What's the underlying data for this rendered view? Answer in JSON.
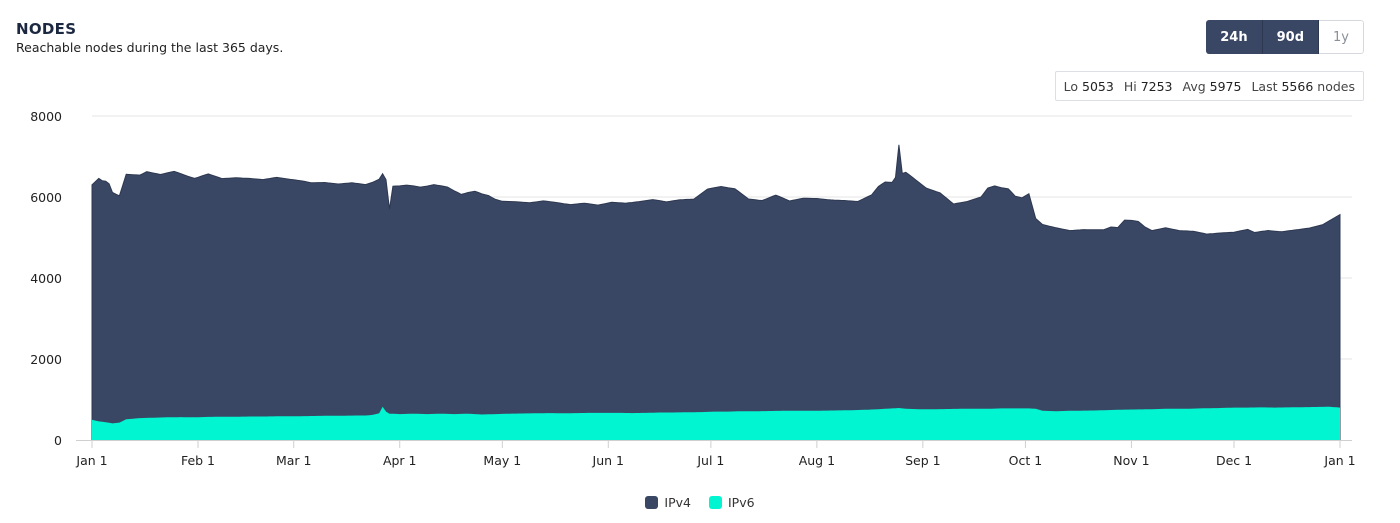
{
  "header": {
    "title": "NODES",
    "subtitle": "Reachable nodes during the last 365 days."
  },
  "range_buttons": [
    {
      "label": "24h",
      "active": true
    },
    {
      "label": "90d",
      "active": true
    },
    {
      "label": "1y",
      "active": false
    }
  ],
  "stats": {
    "lo_label": "Lo",
    "lo": "5053",
    "hi_label": "Hi",
    "hi": "7253",
    "avg_label": "Avg",
    "avg": "5975",
    "last_label": "Last",
    "last": "5566",
    "unit": "nodes"
  },
  "colors": {
    "ipv4": "#3a4764",
    "ipv6": "#00f5d0",
    "button_active": "#3a4764"
  },
  "chart_data": {
    "type": "area",
    "stacked": true,
    "title": "NODES",
    "subtitle": "Reachable nodes during the last 365 days.",
    "xlabel": "",
    "ylabel": "",
    "ylim": [
      0,
      8000
    ],
    "yticks": [
      "0",
      "2000",
      "4000",
      "6000",
      "8000"
    ],
    "x_day_range": [
      0,
      365
    ],
    "xticks": [
      {
        "day": 0,
        "label": "Jan 1"
      },
      {
        "day": 31,
        "label": "Feb 1"
      },
      {
        "day": 59,
        "label": "Mar 1"
      },
      {
        "day": 90,
        "label": "Apr 1"
      },
      {
        "day": 120,
        "label": "May 1"
      },
      {
        "day": 151,
        "label": "Jun 1"
      },
      {
        "day": 181,
        "label": "Jul 1"
      },
      {
        "day": 212,
        "label": "Aug 1"
      },
      {
        "day": 243,
        "label": "Sep 1"
      },
      {
        "day": 273,
        "label": "Oct 1"
      },
      {
        "day": 304,
        "label": "Nov 1"
      },
      {
        "day": 334,
        "label": "Dec 1"
      },
      {
        "day": 365,
        "label": "Jan 1"
      }
    ],
    "grid": true,
    "legend": "bottom-center",
    "series": [
      {
        "name": "IPv4",
        "points": [
          [
            0,
            5800
          ],
          [
            1,
            5900
          ],
          [
            2,
            6000
          ],
          [
            3,
            5950
          ],
          [
            4,
            5950
          ],
          [
            5,
            5900
          ],
          [
            6,
            5700
          ],
          [
            8,
            5600
          ],
          [
            10,
            6050
          ],
          [
            14,
            6000
          ],
          [
            16,
            6080
          ],
          [
            20,
            6000
          ],
          [
            24,
            6070
          ],
          [
            28,
            5950
          ],
          [
            30,
            5900
          ],
          [
            34,
            6000
          ],
          [
            38,
            5880
          ],
          [
            42,
            5900
          ],
          [
            46,
            5880
          ],
          [
            50,
            5850
          ],
          [
            54,
            5900
          ],
          [
            58,
            5850
          ],
          [
            62,
            5800
          ],
          [
            64,
            5760
          ],
          [
            68,
            5760
          ],
          [
            72,
            5720
          ],
          [
            76,
            5750
          ],
          [
            80,
            5700
          ],
          [
            84,
            5780
          ],
          [
            86,
            5730
          ],
          [
            87,
            5050
          ],
          [
            88,
            5620
          ],
          [
            92,
            5650
          ],
          [
            96,
            5600
          ],
          [
            100,
            5660
          ],
          [
            104,
            5600
          ],
          [
            108,
            5420
          ],
          [
            112,
            5500
          ],
          [
            116,
            5400
          ],
          [
            118,
            5300
          ],
          [
            120,
            5250
          ],
          [
            124,
            5230
          ],
          [
            128,
            5200
          ],
          [
            132,
            5240
          ],
          [
            136,
            5200
          ],
          [
            140,
            5150
          ],
          [
            144,
            5180
          ],
          [
            148,
            5130
          ],
          [
            152,
            5200
          ],
          [
            156,
            5180
          ],
          [
            160,
            5220
          ],
          [
            164,
            5260
          ],
          [
            168,
            5200
          ],
          [
            172,
            5250
          ],
          [
            176,
            5260
          ],
          [
            180,
            5500
          ],
          [
            184,
            5560
          ],
          [
            188,
            5500
          ],
          [
            192,
            5240
          ],
          [
            196,
            5200
          ],
          [
            200,
            5330
          ],
          [
            204,
            5180
          ],
          [
            208,
            5250
          ],
          [
            212,
            5240
          ],
          [
            216,
            5200
          ],
          [
            220,
            5180
          ],
          [
            224,
            5150
          ],
          [
            228,
            5300
          ],
          [
            230,
            5500
          ],
          [
            232,
            5600
          ],
          [
            234,
            5580
          ],
          [
            235,
            5700
          ],
          [
            236,
            6500
          ],
          [
            237,
            5800
          ],
          [
            238,
            5840
          ],
          [
            240,
            5720
          ],
          [
            244,
            5460
          ],
          [
            248,
            5340
          ],
          [
            252,
            5060
          ],
          [
            256,
            5120
          ],
          [
            260,
            5230
          ],
          [
            262,
            5450
          ],
          [
            264,
            5500
          ],
          [
            266,
            5450
          ],
          [
            268,
            5420
          ],
          [
            270,
            5240
          ],
          [
            272,
            5200
          ],
          [
            274,
            5300
          ],
          [
            276,
            4700
          ],
          [
            278,
            4600
          ],
          [
            282,
            4530
          ],
          [
            286,
            4450
          ],
          [
            290,
            4470
          ],
          [
            294,
            4460
          ],
          [
            296,
            4460
          ],
          [
            298,
            4520
          ],
          [
            300,
            4500
          ],
          [
            302,
            4680
          ],
          [
            304,
            4670
          ],
          [
            306,
            4640
          ],
          [
            308,
            4500
          ],
          [
            310,
            4410
          ],
          [
            314,
            4470
          ],
          [
            318,
            4400
          ],
          [
            322,
            4380
          ],
          [
            326,
            4300
          ],
          [
            330,
            4320
          ],
          [
            334,
            4330
          ],
          [
            338,
            4400
          ],
          [
            340,
            4320
          ],
          [
            344,
            4370
          ],
          [
            348,
            4340
          ],
          [
            352,
            4380
          ],
          [
            356,
            4420
          ],
          [
            358,
            4460
          ],
          [
            360,
            4500
          ],
          [
            362,
            4600
          ],
          [
            365,
            4766
          ]
        ]
      },
      {
        "name": "IPv6",
        "points": [
          [
            0,
            500
          ],
          [
            2,
            460
          ],
          [
            4,
            440
          ],
          [
            6,
            410
          ],
          [
            8,
            430
          ],
          [
            10,
            510
          ],
          [
            14,
            540
          ],
          [
            18,
            550
          ],
          [
            22,
            560
          ],
          [
            26,
            565
          ],
          [
            30,
            560
          ],
          [
            34,
            570
          ],
          [
            38,
            575
          ],
          [
            42,
            575
          ],
          [
            46,
            580
          ],
          [
            50,
            580
          ],
          [
            54,
            585
          ],
          [
            58,
            585
          ],
          [
            62,
            590
          ],
          [
            66,
            595
          ],
          [
            70,
            600
          ],
          [
            74,
            600
          ],
          [
            78,
            605
          ],
          [
            80,
            605
          ],
          [
            82,
            620
          ],
          [
            84,
            660
          ],
          [
            85,
            820
          ],
          [
            86,
            700
          ],
          [
            87,
            650
          ],
          [
            90,
            640
          ],
          [
            94,
            650
          ],
          [
            98,
            640
          ],
          [
            102,
            650
          ],
          [
            106,
            640
          ],
          [
            110,
            650
          ],
          [
            114,
            630
          ],
          [
            118,
            640
          ],
          [
            122,
            650
          ],
          [
            126,
            655
          ],
          [
            130,
            660
          ],
          [
            134,
            665
          ],
          [
            138,
            660
          ],
          [
            142,
            665
          ],
          [
            146,
            670
          ],
          [
            150,
            670
          ],
          [
            154,
            670
          ],
          [
            158,
            665
          ],
          [
            162,
            670
          ],
          [
            166,
            680
          ],
          [
            170,
            680
          ],
          [
            174,
            685
          ],
          [
            178,
            690
          ],
          [
            182,
            700
          ],
          [
            186,
            700
          ],
          [
            190,
            710
          ],
          [
            194,
            710
          ],
          [
            198,
            715
          ],
          [
            202,
            720
          ],
          [
            206,
            720
          ],
          [
            210,
            720
          ],
          [
            214,
            725
          ],
          [
            218,
            730
          ],
          [
            222,
            735
          ],
          [
            226,
            745
          ],
          [
            230,
            760
          ],
          [
            234,
            780
          ],
          [
            236,
            790
          ],
          [
            238,
            770
          ],
          [
            242,
            760
          ],
          [
            246,
            760
          ],
          [
            250,
            765
          ],
          [
            254,
            770
          ],
          [
            258,
            770
          ],
          [
            262,
            770
          ],
          [
            266,
            780
          ],
          [
            270,
            780
          ],
          [
            274,
            780
          ],
          [
            276,
            770
          ],
          [
            278,
            720
          ],
          [
            282,
            710
          ],
          [
            286,
            720
          ],
          [
            290,
            725
          ],
          [
            294,
            730
          ],
          [
            298,
            740
          ],
          [
            302,
            750
          ],
          [
            306,
            755
          ],
          [
            310,
            760
          ],
          [
            314,
            770
          ],
          [
            318,
            770
          ],
          [
            322,
            775
          ],
          [
            326,
            785
          ],
          [
            330,
            790
          ],
          [
            334,
            800
          ],
          [
            338,
            800
          ],
          [
            342,
            805
          ],
          [
            346,
            800
          ],
          [
            350,
            805
          ],
          [
            354,
            810
          ],
          [
            358,
            815
          ],
          [
            362,
            820
          ],
          [
            365,
            800
          ]
        ]
      }
    ]
  },
  "legend": {
    "items": [
      {
        "label": "IPv4",
        "color": "#3a4764"
      },
      {
        "label": "IPv6",
        "color": "#00f5d0"
      }
    ]
  }
}
